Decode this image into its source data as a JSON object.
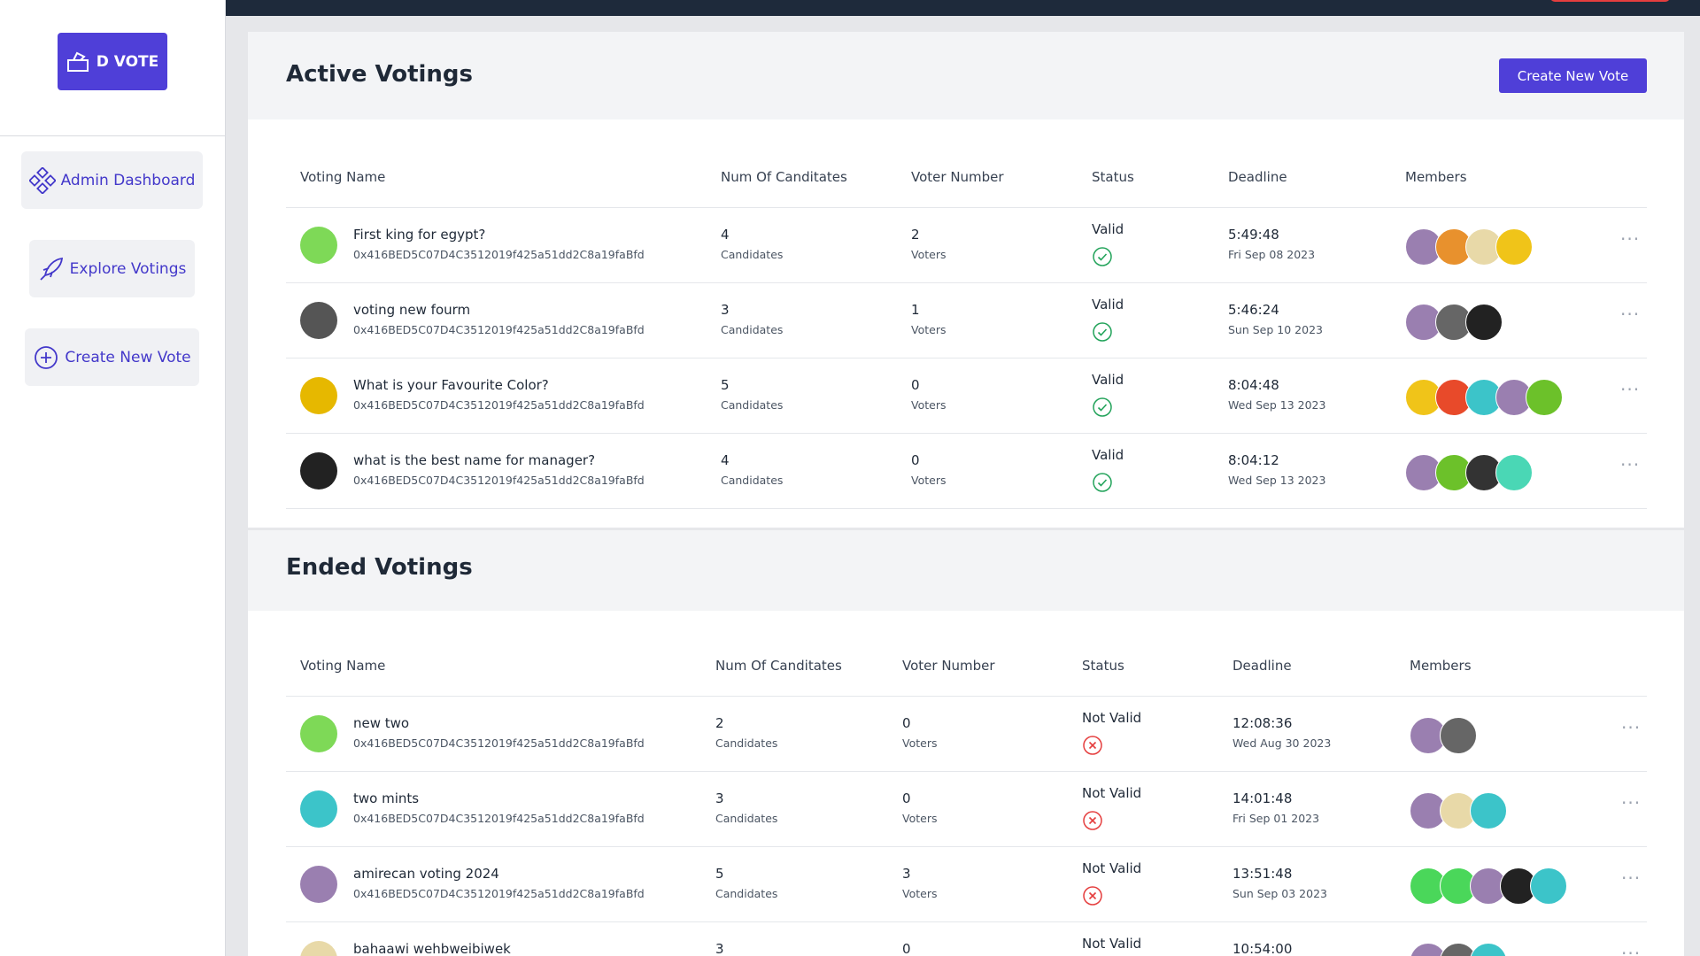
{
  "sidebar": {
    "logo": "D VOTE",
    "nav": [
      "Admin Dashboard",
      "Explore Votings",
      "Create New Vote"
    ]
  },
  "active": {
    "title": "Active Votings",
    "button": "Create New Vote",
    "headers": [
      "Voting Name",
      "Num Of Canditates",
      "Voter Number",
      "Status",
      "Deadline",
      "Members"
    ],
    "status_icon": "check",
    "rows": [
      {
        "name": "First king for egypt?",
        "address": "0x416BED5C07D4C3512019f425a51dd2C8a19faBfd",
        "candidates": 4,
        "candidates_label": "Candidates",
        "voters": 2,
        "voters_label": "Voters",
        "status": "Valid",
        "time": "5:49:48",
        "date": "Fri Sep 08 2023",
        "icon_color": "#7ed957",
        "members": [
          "#9a7fb0",
          "#e8912d",
          "#e8d9a8",
          "#f0c419"
        ]
      },
      {
        "name": "voting new fourm",
        "address": "0x416BED5C07D4C3512019f425a51dd2C8a19faBfd",
        "candidates": 3,
        "candidates_label": "Candidates",
        "voters": 1,
        "voters_label": "Voters",
        "status": "Valid",
        "time": "5:46:24",
        "date": "Sun Sep 10 2023",
        "icon_color": "#555555",
        "members": [
          "#9a7fb0",
          "#666666",
          "#222222"
        ]
      },
      {
        "name": "What is your Favourite Color?",
        "address": "0x416BED5C07D4C3512019f425a51dd2C8a19faBfd",
        "candidates": 5,
        "candidates_label": "Candidates",
        "voters": 0,
        "voters_label": "Voters",
        "status": "Valid",
        "time": "8:04:48",
        "date": "Wed Sep 13 2023",
        "icon_color": "#e6b800",
        "members": [
          "#f0c419",
          "#e84a2a",
          "#3cc4c9",
          "#9a7fb0",
          "#6cc12a"
        ]
      },
      {
        "name": "what is the best name for manager?",
        "address": "0x416BED5C07D4C3512019f425a51dd2C8a19faBfd",
        "candidates": 4,
        "candidates_label": "Candidates",
        "voters": 0,
        "voters_label": "Voters",
        "status": "Valid",
        "time": "8:04:12",
        "date": "Wed Sep 13 2023",
        "icon_color": "#222222",
        "members": [
          "#9a7fb0",
          "#6cc12a",
          "#333333",
          "#4ad7b5"
        ]
      }
    ]
  },
  "ended": {
    "title": "Ended Votings",
    "headers": [
      "Voting Name",
      "Num Of Canditates",
      "Voter Number",
      "Status",
      "Deadline",
      "Members"
    ],
    "status_icon": "cross",
    "rows": [
      {
        "name": "new two",
        "address": "0x416BED5C07D4C3512019f425a51dd2C8a19faBfd",
        "candidates": 2,
        "candidates_label": "Candidates",
        "voters": 0,
        "voters_label": "Voters",
        "status": "Not Valid",
        "time": "12:08:36",
        "date": "Wed Aug 30 2023",
        "icon_color": "#7ed957",
        "members": [
          "#9a7fb0",
          "#666666"
        ]
      },
      {
        "name": "two mints",
        "address": "0x416BED5C07D4C3512019f425a51dd2C8a19faBfd",
        "candidates": 3,
        "candidates_label": "Candidates",
        "voters": 0,
        "voters_label": "Voters",
        "status": "Not Valid",
        "time": "14:01:48",
        "date": "Fri Sep 01 2023",
        "icon_color": "#3cc4c9",
        "members": [
          "#9a7fb0",
          "#e8d9a8",
          "#3cc4c9"
        ]
      },
      {
        "name": "amirecan voting 2024",
        "address": "0x416BED5C07D4C3512019f425a51dd2C8a19faBfd",
        "candidates": 5,
        "candidates_label": "Candidates",
        "voters": 3,
        "voters_label": "Voters",
        "status": "Not Valid",
        "time": "13:51:48",
        "date": "Sun Sep 03 2023",
        "icon_color": "#9a7fb0",
        "members": [
          "#4ad75a",
          "#4ad75a",
          "#9a7fb0",
          "#222222",
          "#3cc4c9"
        ]
      },
      {
        "name": "bahaawi wehbweibiwek",
        "candidates": 3,
        "voters": 0,
        "status": "Not Valid",
        "time": "10:54:00",
        "icon_color": "#e8d9a8",
        "members": [
          "#9a7fb0",
          "#666666",
          "#3cc4c9"
        ]
      }
    ]
  }
}
